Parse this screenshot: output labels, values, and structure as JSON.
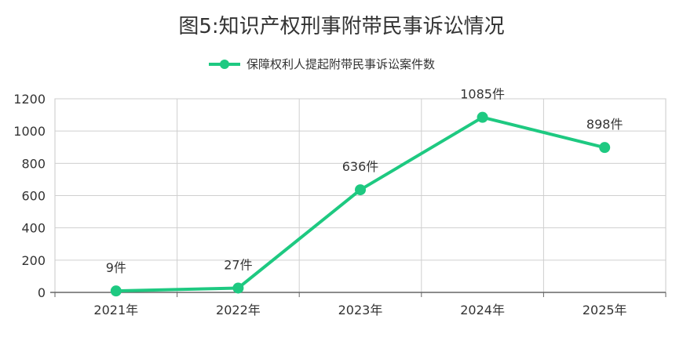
{
  "chart_data": {
    "type": "line",
    "title": "图5:知识产权刑事附带民事诉讼情况",
    "categories": [
      "2021年",
      "2022年",
      "2023年",
      "2024年",
      "2025年"
    ],
    "series": [
      {
        "name": "保障权利人提起附带民事诉讼案件数",
        "values": [
          9,
          27,
          636,
          1085,
          898
        ],
        "labels": [
          "9件",
          "27件",
          "636件",
          "1085件",
          "898件"
        ]
      }
    ],
    "ylim": [
      0,
      1200
    ],
    "yticks": [
      "0",
      "200",
      "400",
      "600",
      "800",
      "1000",
      "1200"
    ],
    "ytick_values": [
      0,
      200,
      400,
      600,
      800,
      1000,
      1200
    ],
    "grid": true,
    "legend_position": "top-center",
    "xlabel": "",
    "ylabel": ""
  },
  "colors": {
    "series": "#1ec981",
    "grid": "#cfcfcf",
    "plot_border": "#c8c8c8",
    "axis": "#666666",
    "text": "#333333"
  }
}
